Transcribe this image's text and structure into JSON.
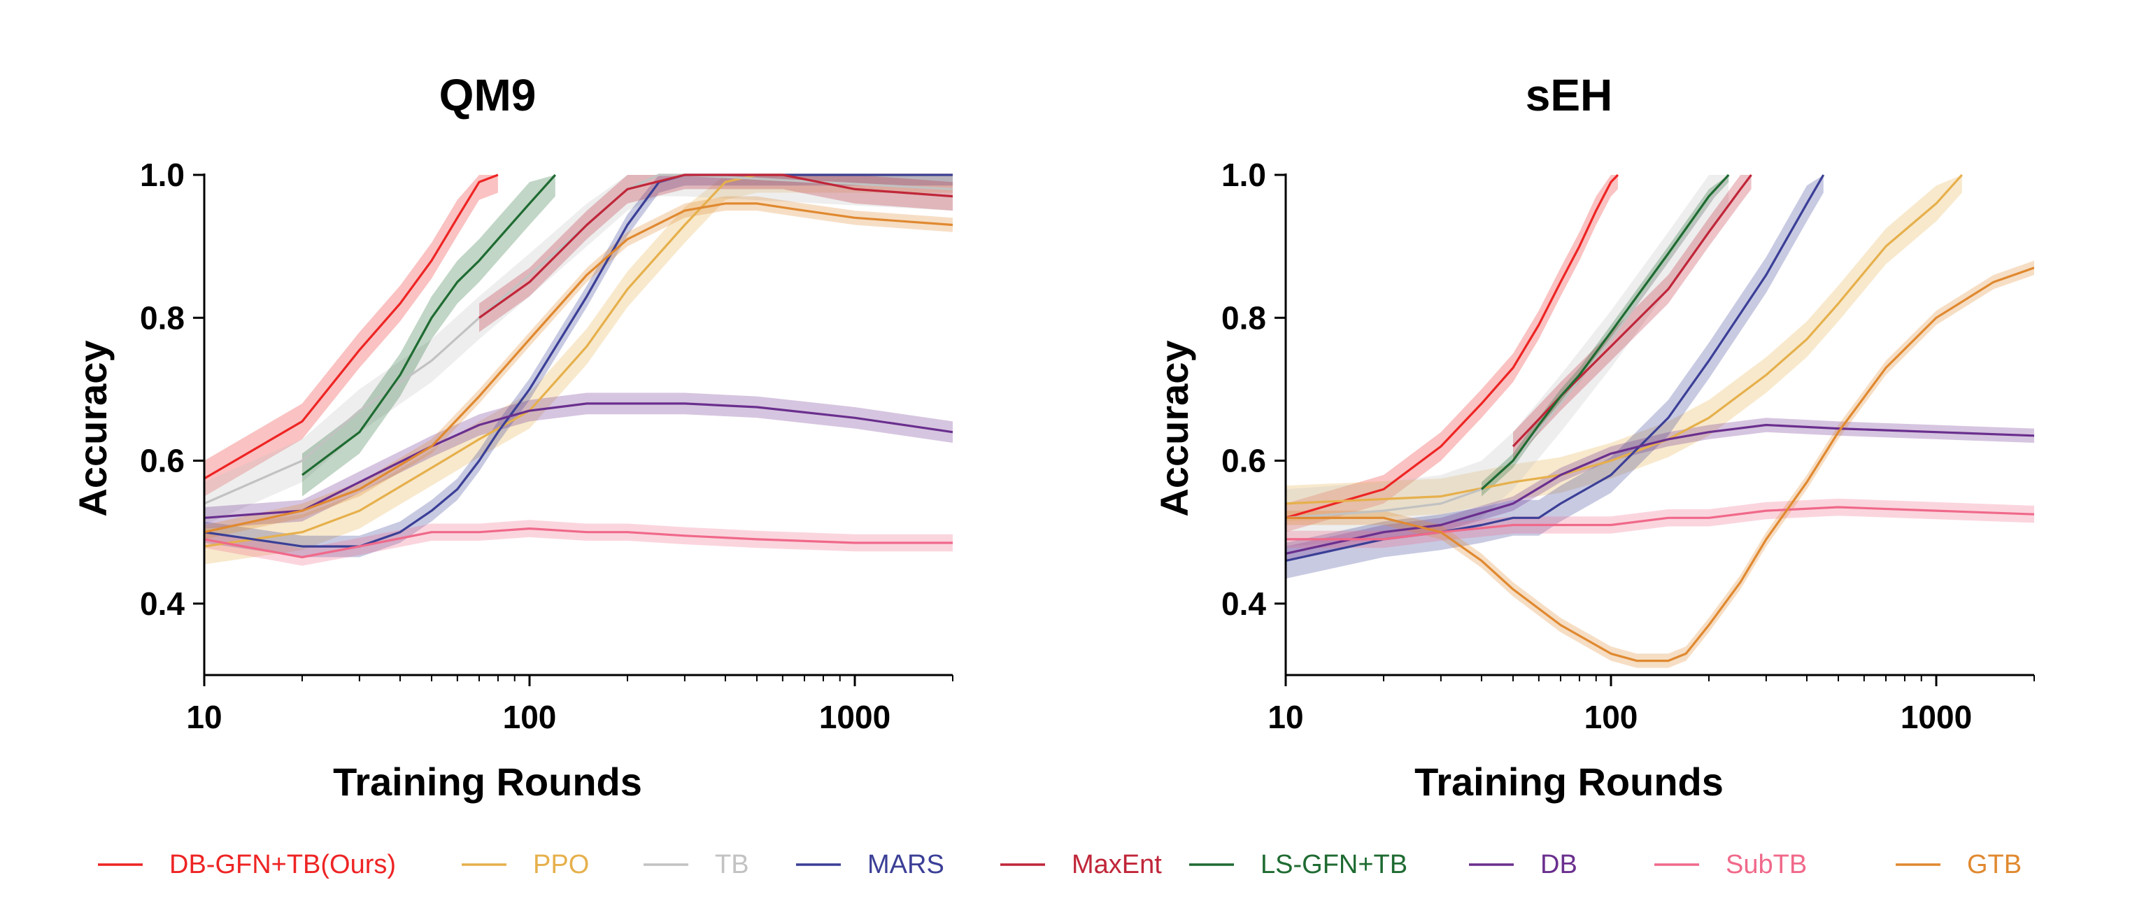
{
  "chart_data": [
    {
      "type": "line",
      "title": "QM9",
      "xlabel": "Training Rounds",
      "ylabel": "Accuracy",
      "xscale": "log",
      "xlim": [
        10,
        2000
      ],
      "ylim": [
        0.3,
        1.0
      ],
      "xticks": [
        "10",
        "100",
        "1000"
      ],
      "yticks": [
        "0.4",
        "0.6",
        "0.8",
        "1.0"
      ],
      "series": [
        {
          "name": "DB-GFN+TB(Ours)",
          "x": [
            10,
            20,
            30,
            40,
            50,
            60,
            70,
            80
          ],
          "y": [
            0.575,
            0.655,
            0.755,
            0.82,
            0.88,
            0.94,
            0.99,
            1.0
          ],
          "band": 0.025
        },
        {
          "name": "PPO",
          "x": [
            10,
            20,
            30,
            50,
            70,
            100,
            150,
            200,
            300,
            400,
            500,
            2000
          ],
          "y": [
            0.48,
            0.5,
            0.53,
            0.59,
            0.63,
            0.67,
            0.76,
            0.84,
            0.93,
            0.99,
            1.0,
            1.0
          ],
          "band": 0.025
        },
        {
          "name": "TB",
          "x": [
            10,
            20,
            30,
            50,
            70,
            100,
            150,
            200,
            250,
            300,
            2000
          ],
          "y": [
            0.54,
            0.6,
            0.67,
            0.74,
            0.8,
            0.86,
            0.93,
            0.98,
            1.0,
            1.0,
            0.98
          ],
          "band": 0.03
        },
        {
          "name": "MARS",
          "x": [
            10,
            20,
            30,
            40,
            50,
            60,
            70,
            80,
            100,
            150,
            200,
            250,
            300,
            2000
          ],
          "y": [
            0.5,
            0.48,
            0.48,
            0.5,
            0.53,
            0.56,
            0.6,
            0.64,
            0.7,
            0.83,
            0.93,
            0.99,
            1.0,
            1.0
          ],
          "band": 0.015
        },
        {
          "name": "MaxEnt",
          "x": [
            70,
            100,
            150,
            200,
            300,
            400,
            600,
            1000,
            2000
          ],
          "y": [
            0.8,
            0.85,
            0.93,
            0.98,
            1.0,
            1.0,
            1.0,
            0.98,
            0.97
          ],
          "band": 0.02
        },
        {
          "name": "LS-GFN+TB",
          "x": [
            20,
            30,
            40,
            50,
            60,
            70,
            80,
            100,
            120
          ],
          "y": [
            0.58,
            0.64,
            0.72,
            0.8,
            0.85,
            0.88,
            0.91,
            0.96,
            1.0
          ],
          "band": 0.03
        },
        {
          "name": "DB",
          "x": [
            10,
            20,
            30,
            50,
            70,
            100,
            150,
            200,
            300,
            500,
            1000,
            2000
          ],
          "y": [
            0.52,
            0.53,
            0.57,
            0.62,
            0.65,
            0.67,
            0.68,
            0.68,
            0.68,
            0.675,
            0.66,
            0.64
          ],
          "band": 0.015
        },
        {
          "name": "SubTB",
          "x": [
            10,
            20,
            30,
            50,
            70,
            100,
            150,
            200,
            300,
            500,
            1000,
            2000
          ],
          "y": [
            0.49,
            0.465,
            0.48,
            0.5,
            0.5,
            0.505,
            0.5,
            0.5,
            0.495,
            0.49,
            0.485,
            0.485
          ],
          "band": 0.012
        },
        {
          "name": "GTB",
          "x": [
            10,
            20,
            30,
            50,
            70,
            100,
            150,
            200,
            300,
            400,
            500,
            700,
            1000,
            2000
          ],
          "y": [
            0.5,
            0.53,
            0.56,
            0.62,
            0.69,
            0.77,
            0.86,
            0.91,
            0.95,
            0.96,
            0.96,
            0.95,
            0.94,
            0.93
          ],
          "band": 0.01
        }
      ]
    },
    {
      "type": "line",
      "title": "sEH",
      "xlabel": "Training Rounds",
      "ylabel": "Accuracy",
      "xscale": "log",
      "xlim": [
        10,
        2000
      ],
      "ylim": [
        0.3,
        1.0
      ],
      "xticks": [
        "10",
        "100",
        "1000"
      ],
      "yticks": [
        "0.4",
        "0.6",
        "0.8",
        "1.0"
      ],
      "series": [
        {
          "name": "DB-GFN+TB(Ours)",
          "x": [
            10,
            20,
            30,
            40,
            50,
            60,
            70,
            80,
            90,
            100,
            105
          ],
          "y": [
            0.52,
            0.56,
            0.62,
            0.68,
            0.73,
            0.79,
            0.85,
            0.9,
            0.95,
            0.99,
            1.0
          ],
          "band": 0.02
        },
        {
          "name": "PPO",
          "x": [
            10,
            30,
            50,
            70,
            100,
            150,
            200,
            300,
            400,
            500,
            700,
            1000,
            1200
          ],
          "y": [
            0.54,
            0.55,
            0.57,
            0.58,
            0.6,
            0.63,
            0.66,
            0.72,
            0.77,
            0.82,
            0.9,
            0.96,
            1.0
          ],
          "band": 0.025
        },
        {
          "name": "TB",
          "x": [
            10,
            20,
            30,
            40,
            50,
            70,
            100,
            150,
            200,
            230
          ],
          "y": [
            0.52,
            0.53,
            0.54,
            0.56,
            0.6,
            0.68,
            0.77,
            0.88,
            0.96,
            1.0
          ],
          "band": 0.04
        },
        {
          "name": "MARS",
          "x": [
            10,
            20,
            30,
            40,
            50,
            60,
            70,
            100,
            150,
            200,
            300,
            400,
            450
          ],
          "y": [
            0.46,
            0.49,
            0.5,
            0.51,
            0.52,
            0.52,
            0.54,
            0.58,
            0.66,
            0.74,
            0.86,
            0.96,
            1.0
          ],
          "band": 0.025
        },
        {
          "name": "MaxEnt",
          "x": [
            50,
            70,
            100,
            150,
            200,
            250,
            270
          ],
          "y": [
            0.62,
            0.69,
            0.76,
            0.84,
            0.92,
            0.98,
            1.0
          ],
          "band": 0.02
        },
        {
          "name": "LS-GFN+TB",
          "x": [
            40,
            50,
            60,
            70,
            80,
            100,
            150,
            200,
            230
          ],
          "y": [
            0.56,
            0.6,
            0.65,
            0.69,
            0.72,
            0.78,
            0.89,
            0.97,
            1.0
          ],
          "band": 0.01
        },
        {
          "name": "DB",
          "x": [
            10,
            20,
            30,
            50,
            70,
            100,
            150,
            200,
            300,
            500,
            1000,
            2000
          ],
          "y": [
            0.47,
            0.5,
            0.51,
            0.54,
            0.58,
            0.61,
            0.63,
            0.64,
            0.65,
            0.645,
            0.64,
            0.635
          ],
          "band": 0.01
        },
        {
          "name": "SubTB",
          "x": [
            10,
            20,
            30,
            50,
            70,
            100,
            150,
            200,
            300,
            500,
            1000,
            2000
          ],
          "y": [
            0.49,
            0.49,
            0.5,
            0.51,
            0.51,
            0.51,
            0.52,
            0.52,
            0.53,
            0.535,
            0.53,
            0.525
          ],
          "band": 0.012
        },
        {
          "name": "GTB",
          "x": [
            10,
            20,
            30,
            40,
            50,
            70,
            100,
            120,
            150,
            170,
            200,
            250,
            300,
            400,
            500,
            700,
            1000,
            1500,
            2000
          ],
          "y": [
            0.52,
            0.52,
            0.5,
            0.46,
            0.42,
            0.37,
            0.33,
            0.32,
            0.32,
            0.33,
            0.37,
            0.43,
            0.49,
            0.57,
            0.64,
            0.73,
            0.8,
            0.85,
            0.87
          ],
          "band": 0.01
        }
      ]
    }
  ],
  "legend": [
    {
      "label": "DB-GFN+TB(Ours)",
      "color": "#ee2424"
    },
    {
      "label": "PPO",
      "color": "#e6b04c"
    },
    {
      "label": "TB",
      "color": "#c2c2c2"
    },
    {
      "label": "MARS",
      "color": "#3b3f96"
    },
    {
      "label": "MaxEnt",
      "color": "#c02639"
    },
    {
      "label": "LS-GFN+TB",
      "color": "#1f6b32"
    },
    {
      "label": "DB",
      "color": "#6a2f8e"
    },
    {
      "label": "SubTB",
      "color": "#f0698a"
    },
    {
      "label": "GTB",
      "color": "#e08930"
    }
  ]
}
